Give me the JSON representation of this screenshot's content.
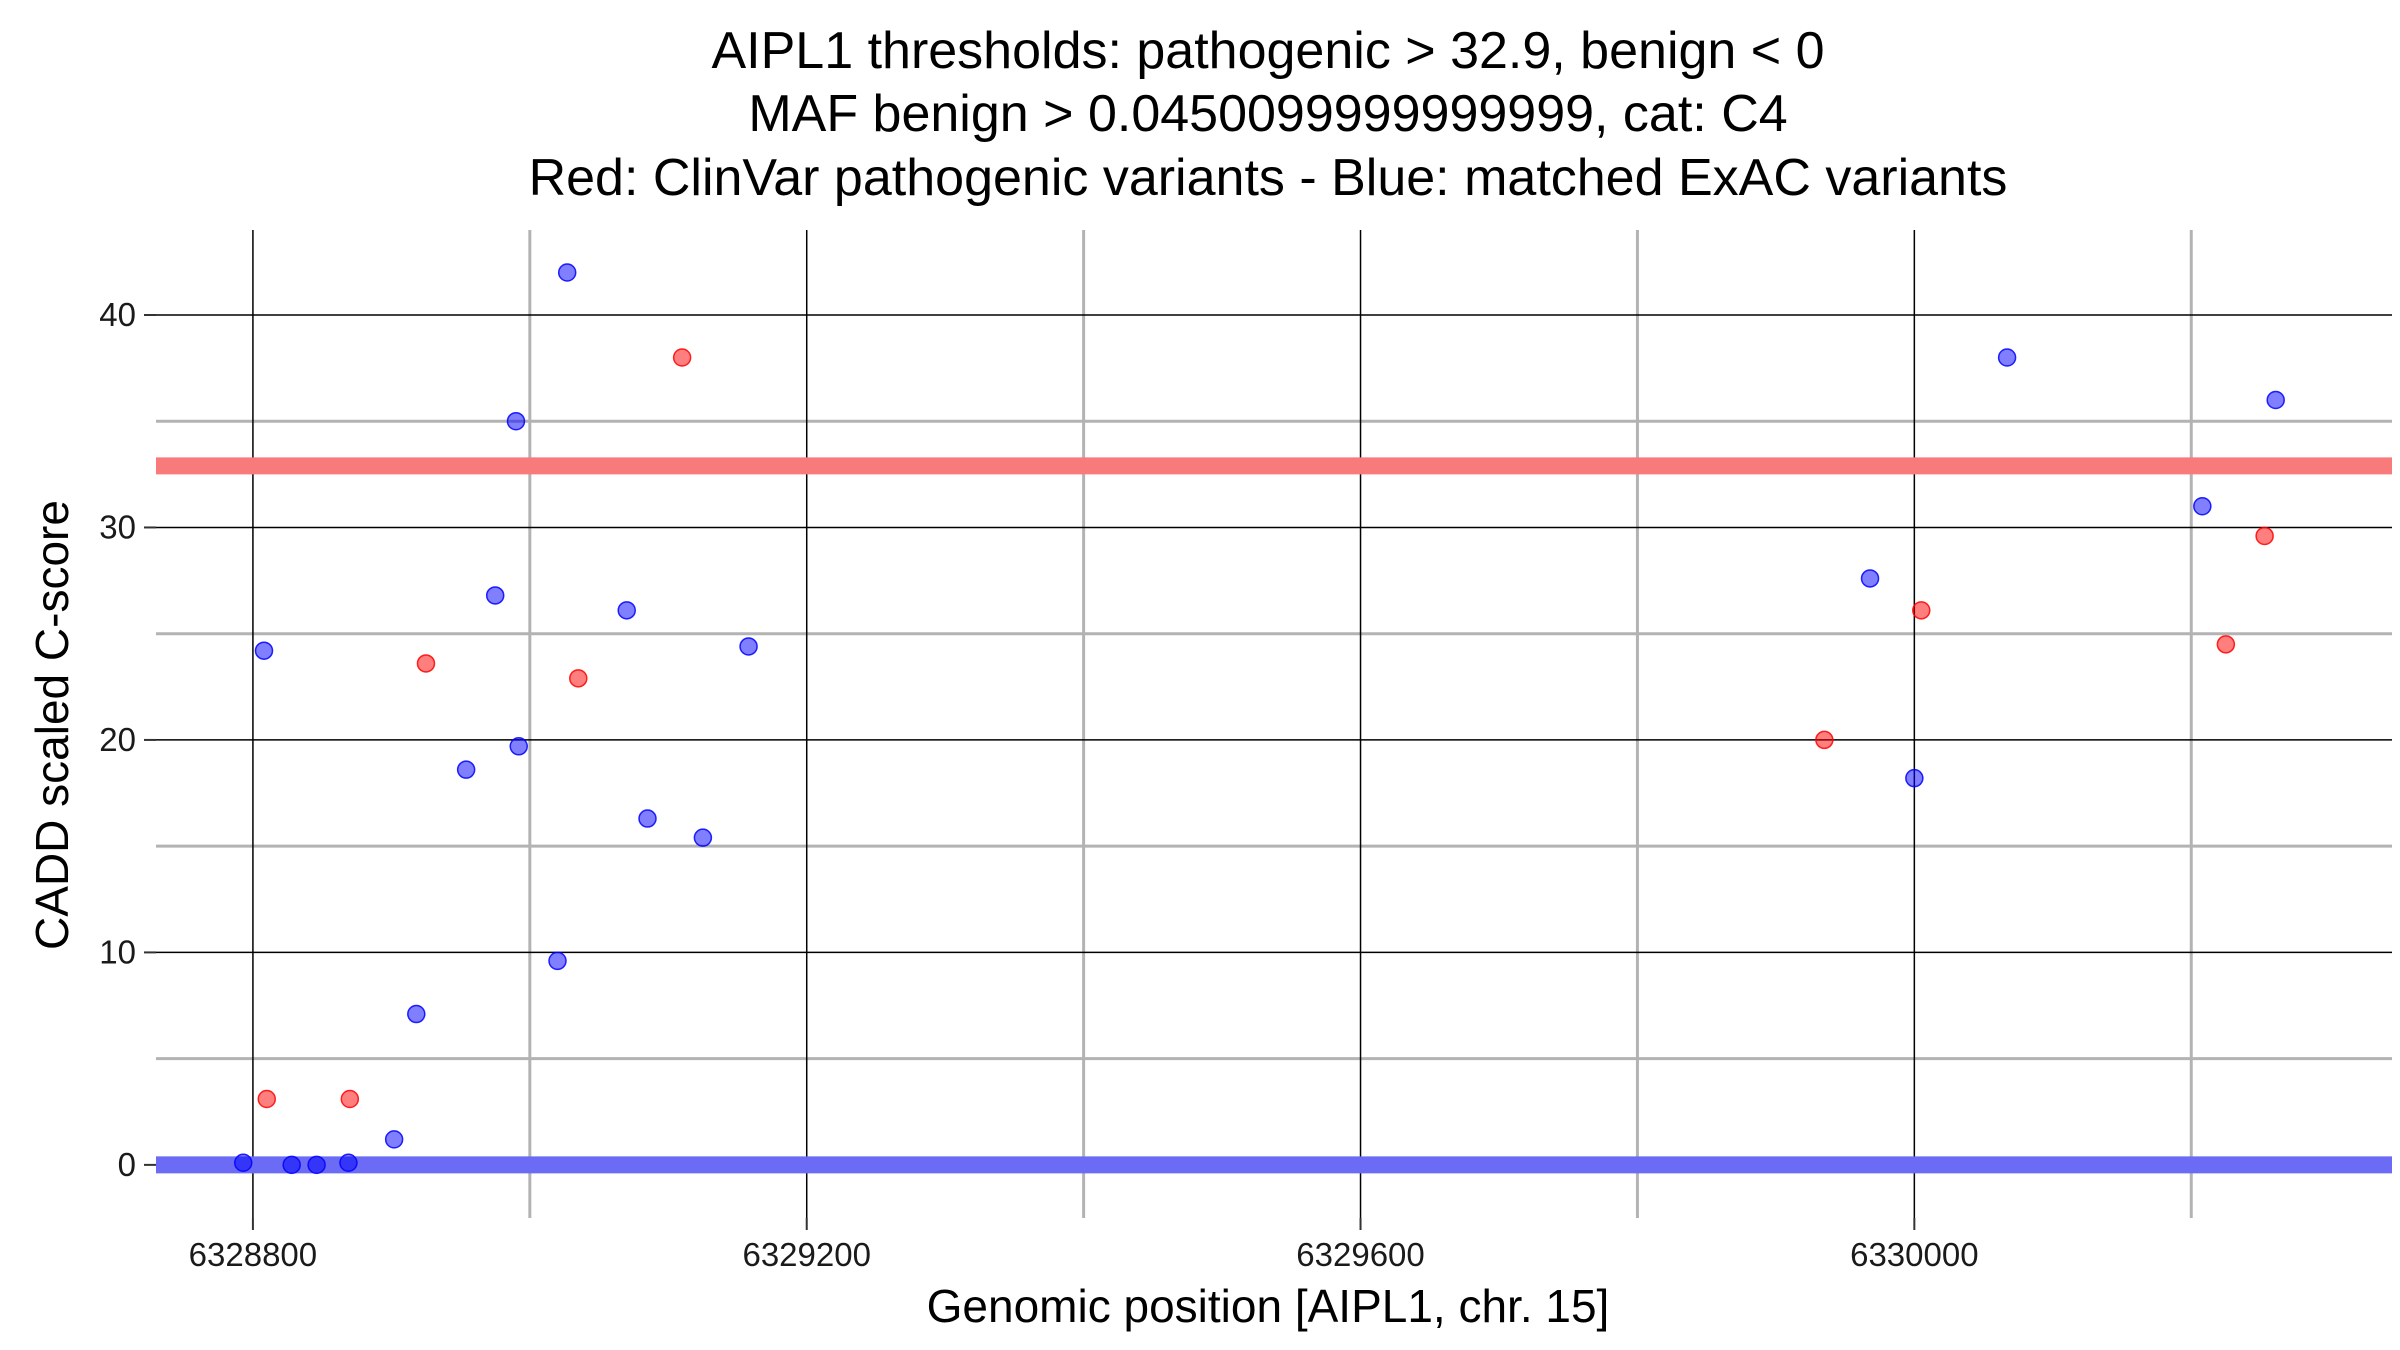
{
  "chart_data": {
    "type": "scatter",
    "title": [
      "AIPL1 thresholds: pathogenic > 32.9, benign < 0",
      "MAF benign > 0.0450099999999999, cat: C4",
      "Red: ClinVar pathogenic variants - Blue: matched ExAC variants"
    ],
    "xlabel": "Genomic position [AIPL1, chr. 15]",
    "ylabel": "CADD scaled C-score",
    "xlim": [
      6328730,
      6330345
    ],
    "ylim": [
      -2.5,
      44
    ],
    "x_ticks": [
      6328800,
      6329200,
      6329600,
      6330000
    ],
    "x_tick_labels": [
      "6328800",
      "6329200",
      "6329600",
      "6330000"
    ],
    "x_minor_gridlines": [
      6329000,
      6329400,
      6329800,
      6330200
    ],
    "y_ticks": [
      0,
      10,
      20,
      30,
      40
    ],
    "y_tick_labels": [
      "0",
      "10",
      "20",
      "30",
      "40"
    ],
    "y_minor_gridlines": [
      5,
      15,
      25,
      35
    ],
    "grid": true,
    "colors": {
      "pathogenic": "#ff0000",
      "benign": "#0000ff",
      "pathogenic_line": "#f87a7a",
      "benign_line": "#6b6bf5",
      "major_grid": "#000000",
      "minor_grid": "#b3b3b3"
    },
    "thresholds": {
      "pathogenic": 32.9,
      "benign": 0
    },
    "series": [
      {
        "color": "#ff0000",
        "points": [
          {
            "x": 6328810,
            "y": 3.1
          },
          {
            "x": 6328870,
            "y": 3.1
          },
          {
            "x": 6328925,
            "y": 23.6
          },
          {
            "x": 6329035,
            "y": 22.9
          },
          {
            "x": 6329110,
            "y": 38.0
          },
          {
            "x": 6329935,
            "y": 20.0
          },
          {
            "x": 6330005,
            "y": 26.1
          },
          {
            "x": 6330225,
            "y": 24.5
          },
          {
            "x": 6330253,
            "y": 29.6
          }
        ]
      },
      {
        "color": "#0000ff",
        "points": [
          {
            "x": 6328793,
            "y": 0.1
          },
          {
            "x": 6328808,
            "y": 24.2
          },
          {
            "x": 6328828,
            "y": 0.0
          },
          {
            "x": 6328846,
            "y": 0.0
          },
          {
            "x": 6328869,
            "y": 0.1
          },
          {
            "x": 6328902,
            "y": 1.2
          },
          {
            "x": 6328918,
            "y": 7.1
          },
          {
            "x": 6328954,
            "y": 18.6
          },
          {
            "x": 6328975,
            "y": 26.8
          },
          {
            "x": 6328990,
            "y": 35.0
          },
          {
            "x": 6328992,
            "y": 19.7
          },
          {
            "x": 6329020,
            "y": 9.6
          },
          {
            "x": 6329027,
            "y": 42.0
          },
          {
            "x": 6329070,
            "y": 26.1
          },
          {
            "x": 6329085,
            "y": 16.3
          },
          {
            "x": 6329125,
            "y": 15.4
          },
          {
            "x": 6329158,
            "y": 24.4
          },
          {
            "x": 6329968,
            "y": 27.6
          },
          {
            "x": 6330000,
            "y": 18.2
          },
          {
            "x": 6330067,
            "y": 38.0
          },
          {
            "x": 6330208,
            "y": 31.0
          },
          {
            "x": 6330261,
            "y": 36.0
          }
        ]
      }
    ]
  }
}
